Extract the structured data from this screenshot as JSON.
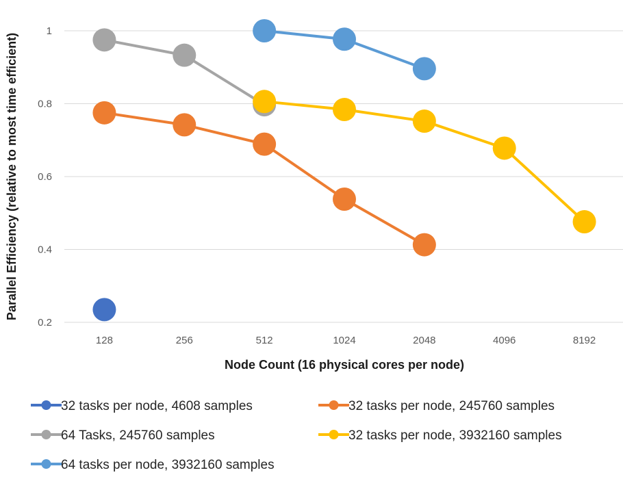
{
  "chart_data": {
    "type": "line",
    "xlabel": "Node Count (16 physical cores per node)",
    "ylabel": "Parallel Efficiency (relative to most time efficient)",
    "categories": [
      "128",
      "256",
      "512",
      "1024",
      "2048",
      "4096",
      "8192"
    ],
    "ylim": [
      0.2,
      1.0
    ],
    "yticks": [
      "0.2",
      "0.4",
      "0.6",
      "0.8",
      "1"
    ],
    "grid": "horizontal",
    "legend_position": "bottom",
    "series": [
      {
        "name": "32 tasks per node, 4608 samples",
        "color": "#4472C4",
        "values": [
          0.235,
          null,
          null,
          null,
          null,
          null,
          null
        ]
      },
      {
        "name": "32 tasks per node, 245760 samples",
        "color": "#ED7D31",
        "values": [
          0.775,
          0.742,
          0.689,
          0.538,
          0.413,
          null,
          null
        ]
      },
      {
        "name": "64 Tasks, 245760 samples",
        "color": "#A5A5A5",
        "values": [
          0.975,
          0.933,
          0.797,
          null,
          null,
          null,
          null
        ]
      },
      {
        "name": "32 tasks per node, 3932160 samples",
        "color": "#FFC000",
        "values": [
          null,
          null,
          0.806,
          0.784,
          0.752,
          0.678,
          0.476
        ]
      },
      {
        "name": "64 tasks per node, 3932160 samples",
        "color": "#5B9BD5",
        "values": [
          null,
          null,
          1.0,
          0.977,
          0.896,
          null,
          null
        ]
      }
    ]
  }
}
